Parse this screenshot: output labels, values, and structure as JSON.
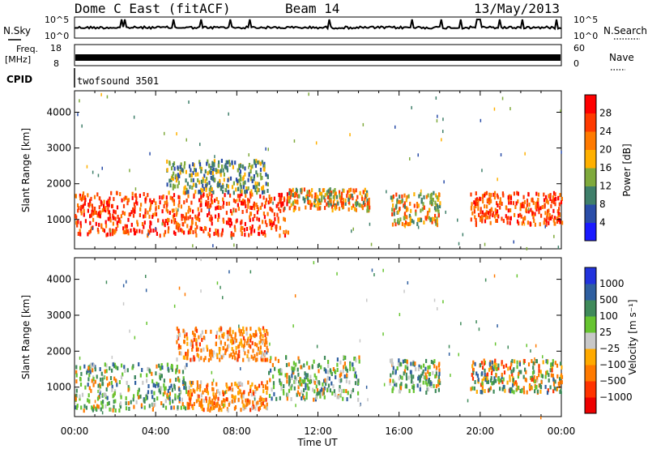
{
  "header": {
    "station": "Dome C East (fitACF)",
    "beam": "Beam 14",
    "date": "13/May/2013"
  },
  "top_panels": {
    "nsky_label": "N.Sky",
    "nsky_tick_hi": "10^5",
    "nsky_tick_lo": "10^0",
    "nsearch_label": "N.Search",
    "nsearch_tick_hi": "10^5",
    "nsearch_tick_lo": "10^0",
    "freq_label": "Freq.",
    "freq_unit": "[MHz]",
    "freq_tick_hi": "18",
    "freq_tick_lo": "8",
    "nave_label": "Nave",
    "nave_tick_hi": "60",
    "nave_tick_lo": "0",
    "cpid_label": "CPID",
    "cpid_value": "twofsound 3501"
  },
  "chart_data": [
    {
      "type": "heatmap",
      "title": "",
      "xlabel": "Time UT",
      "ylabel": "Slant Range [km]",
      "x_ticks": [
        "00:00",
        "04:00",
        "08:00",
        "12:00",
        "16:00",
        "20:00",
        "00:00"
      ],
      "y_ticks": [
        "1000",
        "2000",
        "3000",
        "4000"
      ],
      "xlim_hours": [
        0,
        24
      ],
      "ylim_km": [
        180,
        4600
      ],
      "colorbar_label": "Power [dB]",
      "colorbar_ticks": [
        "4",
        "8",
        "12",
        "16",
        "20",
        "24",
        "28"
      ],
      "colorbar_colors": [
        "#1a1aff",
        "#2a4da8",
        "#3f7f6a",
        "#7faa3c",
        "#ffb000",
        "#ff7a00",
        "#ff3a00",
        "#ff0000"
      ],
      "grid": false,
      "echo_regions": [
        {
          "t_start": 0.0,
          "t_end": 10.5,
          "r_min": 600,
          "r_max": 1800,
          "level": "high"
        },
        {
          "t_start": 10.5,
          "t_end": 14.5,
          "r_min": 1300,
          "r_max": 1900,
          "level": "medium"
        },
        {
          "t_start": 15.5,
          "t_end": 18.0,
          "r_min": 900,
          "r_max": 1800,
          "level": "medium"
        },
        {
          "t_start": 19.5,
          "t_end": 24.0,
          "r_min": 900,
          "r_max": 1800,
          "level": "high"
        },
        {
          "t_start": 4.5,
          "t_end": 9.5,
          "r_min": 1800,
          "r_max": 2700,
          "level": "low"
        }
      ]
    },
    {
      "type": "heatmap",
      "title": "",
      "xlabel": "Time UT",
      "ylabel": "Slant Range [km]",
      "x_ticks": [
        "00:00",
        "04:00",
        "08:00",
        "12:00",
        "16:00",
        "20:00",
        "00:00"
      ],
      "y_ticks": [
        "1000",
        "2000",
        "3000",
        "4000"
      ],
      "xlim_hours": [
        0,
        24
      ],
      "ylim_km": [
        180,
        4600
      ],
      "colorbar_label": "Velocity [m s⁻¹]",
      "colorbar_ticks": [
        "1000",
        "500",
        "100",
        "25",
        "−25",
        "−100",
        "−500",
        "−1000"
      ],
      "colorbar_colors": [
        "#2233dd",
        "#2f5fa0",
        "#3f8a5a",
        "#66c430",
        "#c8c8c8",
        "#ffaa00",
        "#ff7a00",
        "#ff3300",
        "#ee0000"
      ],
      "grid": false,
      "echo_regions": [
        {
          "t_start": 0.0,
          "t_end": 5.5,
          "r_min": 400,
          "r_max": 1700,
          "dominant": "green"
        },
        {
          "t_start": 5.5,
          "t_end": 9.5,
          "r_min": 400,
          "r_max": 1200,
          "dominant": "orange"
        },
        {
          "t_start": 9.5,
          "t_end": 14.0,
          "r_min": 700,
          "r_max": 1900,
          "dominant": "green"
        },
        {
          "t_start": 15.5,
          "t_end": 18.0,
          "r_min": 900,
          "r_max": 1800,
          "dominant": "green"
        },
        {
          "t_start": 19.5,
          "t_end": 24.0,
          "r_min": 900,
          "r_max": 1800,
          "dominant": "mixed"
        },
        {
          "t_start": 5.0,
          "t_end": 9.5,
          "r_min": 1800,
          "r_max": 2700,
          "dominant": "orange"
        }
      ]
    }
  ]
}
